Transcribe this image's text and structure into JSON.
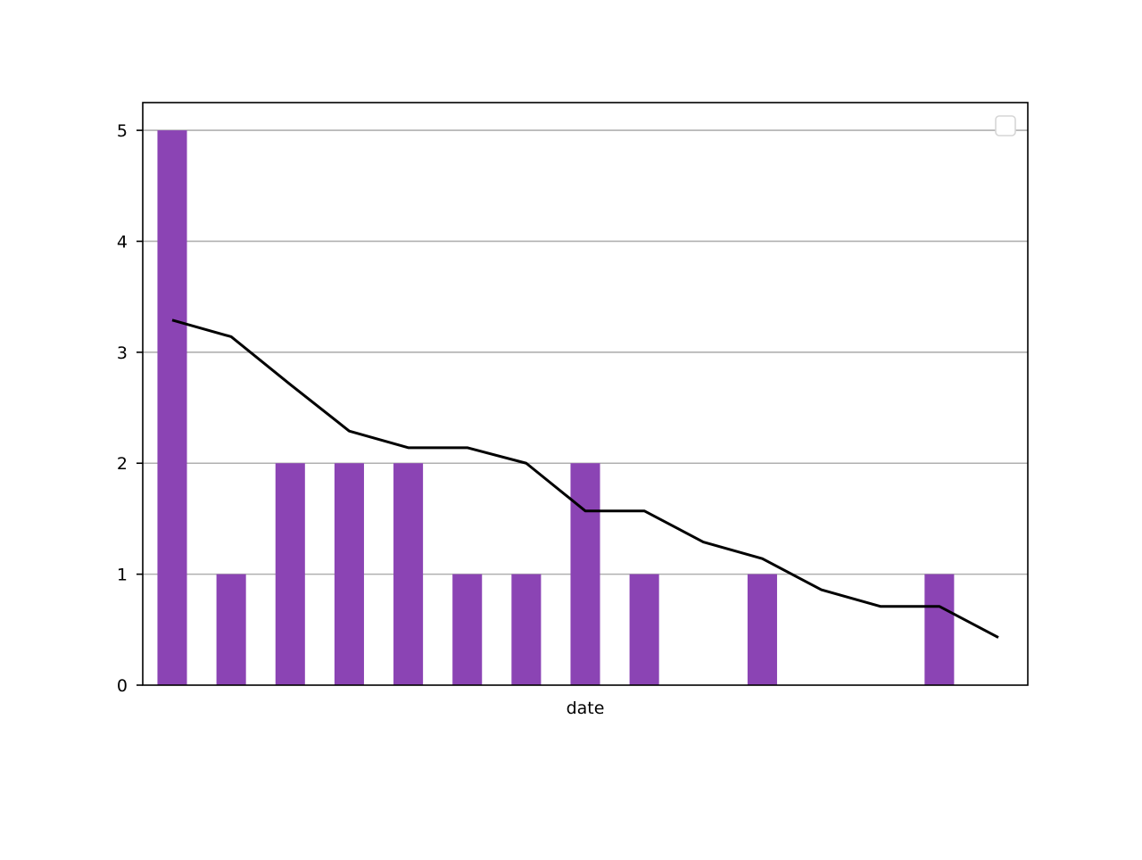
{
  "chart_data": {
    "type": "bar",
    "xlabel": "date",
    "ylabel": "",
    "ylim": [
      0,
      5.25
    ],
    "yticks": [
      0,
      1,
      2,
      3,
      4,
      5
    ],
    "grid": "horizontal",
    "legend": "top-right",
    "categories_count": 15,
    "series": [
      {
        "type": "bar",
        "color": "#8b44b4",
        "values": [
          5,
          1,
          2,
          2,
          2,
          1,
          1,
          2,
          1,
          0,
          1,
          0,
          0,
          1,
          0
        ]
      },
      {
        "type": "line",
        "color": "#000000",
        "values": [
          3.29,
          3.14,
          2.71,
          2.29,
          2.14,
          2.14,
          2.0,
          1.57,
          1.57,
          1.29,
          1.14,
          0.86,
          0.71,
          0.71,
          0.43
        ]
      }
    ]
  }
}
